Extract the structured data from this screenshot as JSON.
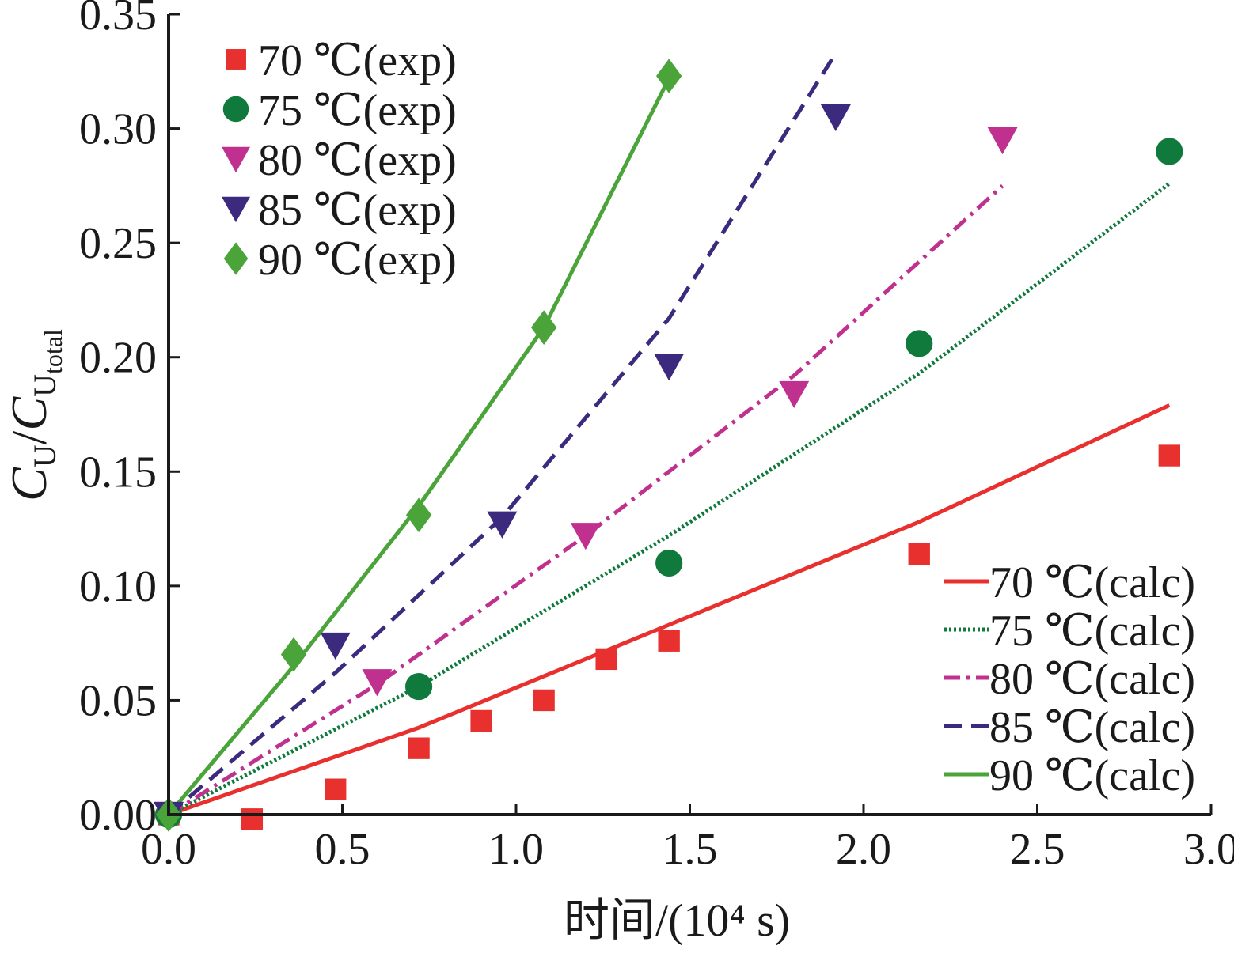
{
  "chart_data": {
    "type": "scatter",
    "xlabel": "时间/(10⁴ s)",
    "ylabel": {
      "numerator": "C",
      "numerator_sub": "U",
      "slash": "/",
      "denominator": "C",
      "denominator_sub": "U",
      "denominator_subsub": "total"
    },
    "xlim": [
      0.0,
      3.0
    ],
    "ylim": [
      0.0,
      0.35
    ],
    "xticks": [
      "0.0",
      "0.5",
      "1.0",
      "1.5",
      "2.0",
      "2.5",
      "3.0"
    ],
    "yticks": [
      "0.00",
      "0.05",
      "0.10",
      "0.15",
      "0.20",
      "0.25",
      "0.30",
      "0.35"
    ],
    "grid": false,
    "legend_exp_position": "top-left",
    "legend_calc_position": "bottom-right",
    "exp_series": [
      {
        "name": "70 ℃(exp)",
        "color": "#e8312f",
        "marker": "square",
        "x": [
          0.0,
          0.24,
          0.48,
          0.72,
          0.9,
          1.08,
          1.26,
          1.44,
          2.16,
          2.88
        ],
        "y": [
          0.0,
          -0.002,
          0.011,
          0.029,
          0.041,
          0.05,
          0.068,
          0.076,
          0.114,
          0.157
        ]
      },
      {
        "name": "75 ℃(exp)",
        "color": "#0f7a3b",
        "marker": "circle",
        "x": [
          0.0,
          0.72,
          1.44,
          2.16,
          2.88
        ],
        "y": [
          0.0,
          0.056,
          0.11,
          0.206,
          0.29
        ]
      },
      {
        "name": "80 ℃(exp)",
        "color": "#c0318f",
        "marker": "triangle-down",
        "x": [
          0.0,
          0.6,
          1.2,
          1.8,
          2.4
        ],
        "y": [
          0.0,
          0.058,
          0.122,
          0.184,
          0.295
        ]
      },
      {
        "name": "85 ℃(exp)",
        "color": "#3b2a7d",
        "marker": "triangle-down",
        "x": [
          0.0,
          0.48,
          0.96,
          1.44,
          1.92
        ],
        "y": [
          0.0,
          0.074,
          0.127,
          0.196,
          0.305
        ]
      },
      {
        "name": "90 ℃(exp)",
        "color": "#4aa43a",
        "marker": "diamond",
        "x": [
          0.0,
          0.36,
          0.72,
          1.08,
          1.44
        ],
        "y": [
          0.0,
          0.07,
          0.131,
          0.213,
          0.323
        ]
      }
    ],
    "calc_series": [
      {
        "name": "70 ℃(calc)",
        "color": "#e8312f",
        "dash": "solid",
        "x": [
          0.0,
          0.72,
          1.44,
          2.16,
          2.88
        ],
        "y": [
          0.0,
          0.038,
          0.083,
          0.128,
          0.179
        ]
      },
      {
        "name": "75 ℃(calc)",
        "color": "#0f7a3b",
        "dash": "dotted",
        "x": [
          0.0,
          0.72,
          1.44,
          2.16,
          2.88
        ],
        "y": [
          0.0,
          0.056,
          0.122,
          0.193,
          0.276
        ]
      },
      {
        "name": "80 ℃(calc)",
        "color": "#c0318f",
        "dash": "dashdot",
        "x": [
          0.0,
          0.6,
          1.2,
          1.8,
          2.4
        ],
        "y": [
          0.0,
          0.057,
          0.122,
          0.192,
          0.275
        ]
      },
      {
        "name": "85 ℃(calc)",
        "color": "#3b2a7d",
        "dash": "dashed",
        "x": [
          0.0,
          0.48,
          0.96,
          1.44,
          1.92
        ],
        "y": [
          0.0,
          0.062,
          0.13,
          0.217,
          0.333
        ]
      },
      {
        "name": "90 ℃(calc)",
        "color": "#4aa43a",
        "dash": "solid",
        "x": [
          0.0,
          0.36,
          0.72,
          1.08,
          1.44
        ],
        "y": [
          0.0,
          0.065,
          0.135,
          0.213,
          0.322
        ]
      }
    ]
  }
}
